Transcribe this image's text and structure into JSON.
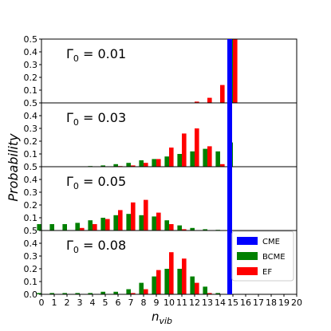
{
  "chart_data": {
    "type": "bar",
    "ylabel": "Probability",
    "xlabel_base": "n",
    "xlabel_sub": "vib",
    "xlim": [
      0,
      20
    ],
    "x_ticks": [
      "0",
      "1",
      "2",
      "3",
      "4",
      "5",
      "6",
      "7",
      "8",
      "9",
      "10",
      "11",
      "12",
      "13",
      "14",
      "15",
      "16",
      "17",
      "18",
      "19",
      "20"
    ],
    "ylim": [
      0,
      0.5
    ],
    "y_ticks": [
      "0.0",
      "0.1",
      "0.2",
      "0.3",
      "0.4",
      "0.5"
    ],
    "panel_top_tick_label": "0.5",
    "legend": {
      "position": "lower-right",
      "entries": [
        {
          "name": "CME",
          "color": "#0000ff"
        },
        {
          "name": "BCME",
          "color": "#008000"
        },
        {
          "name": "EF",
          "color": "#ff0000"
        }
      ]
    },
    "cme_line_x": 14.75,
    "panels": [
      {
        "label_sym": "Γ",
        "label_sub": "0",
        "label_val": "= 0.01",
        "BCME": [
          0,
          0,
          0,
          0,
          0,
          0,
          0,
          0,
          0,
          0,
          0,
          0,
          0,
          0,
          0,
          0.5,
          0,
          0,
          0,
          0,
          0
        ],
        "EF": [
          0,
          0,
          0,
          0,
          0,
          0,
          0,
          0,
          0,
          0,
          0,
          0,
          0.01,
          0.04,
          0.14,
          0.5,
          0,
          0,
          0,
          0,
          0
        ]
      },
      {
        "label_sym": "Γ",
        "label_sub": "0",
        "label_val": "= 0.03",
        "BCME": [
          0,
          0,
          0,
          0,
          0.005,
          0.01,
          0.02,
          0.03,
          0.05,
          0.06,
          0.08,
          0.1,
          0.12,
          0.14,
          0.12,
          0.19,
          0,
          0,
          0,
          0,
          0
        ],
        "EF": [
          0,
          0,
          0,
          0,
          0,
          0,
          0.005,
          0.01,
          0.03,
          0.06,
          0.15,
          0.26,
          0.3,
          0.16,
          0.02,
          0,
          0,
          0,
          0,
          0,
          0
        ]
      },
      {
        "label_sym": "Γ",
        "label_sub": "0",
        "label_val": "= 0.05",
        "BCME": [
          0.05,
          0.05,
          0.05,
          0.06,
          0.08,
          0.1,
          0.12,
          0.13,
          0.12,
          0.11,
          0.08,
          0.04,
          0.02,
          0.01,
          0.005,
          0,
          0,
          0,
          0,
          0,
          0
        ],
        "EF": [
          0,
          0,
          0,
          0.02,
          0.05,
          0.09,
          0.16,
          0.22,
          0.24,
          0.14,
          0.05,
          0.01,
          0,
          0,
          0,
          0,
          0,
          0,
          0,
          0,
          0
        ]
      },
      {
        "label_sym": "Γ",
        "label_sub": "0",
        "label_val": "= 0.08",
        "BCME": [
          0.01,
          0.01,
          0.01,
          0.01,
          0.01,
          0.02,
          0.02,
          0.04,
          0.09,
          0.14,
          0.2,
          0.2,
          0.14,
          0.06,
          0.01,
          0,
          0,
          0,
          0,
          0,
          0
        ],
        "EF": [
          0,
          0,
          0,
          0,
          0,
          0,
          0,
          0.01,
          0.04,
          0.19,
          0.33,
          0.28,
          0.09,
          0.01,
          0,
          0,
          0,
          0,
          0,
          0,
          0
        ]
      }
    ]
  }
}
